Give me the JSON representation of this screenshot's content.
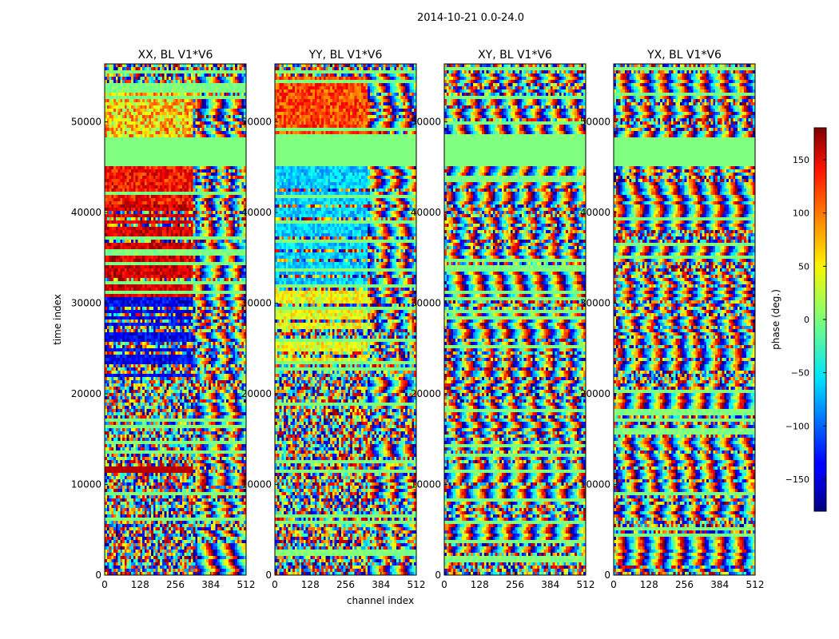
{
  "figure": {
    "suptitle": "2014-10-21 0.0-24.0"
  },
  "chart_data": {
    "type": "heatmap",
    "panels": [
      {
        "title": "XX, BL V1*V6",
        "pol": "XX"
      },
      {
        "title": "YY, BL V1*V6",
        "pol": "YY"
      },
      {
        "title": "XY, BL V1*V6",
        "pol": "XY"
      },
      {
        "title": "YX, BL V1*V6",
        "pol": "YX"
      }
    ],
    "xlabel": "channel index",
    "ylabel": "time index",
    "xlim": [
      0,
      512
    ],
    "ylim": [
      0,
      56400
    ],
    "xticks": [
      0,
      128,
      256,
      384,
      512
    ],
    "yticks": [
      0,
      10000,
      20000,
      30000,
      40000,
      50000
    ],
    "colorbar": {
      "label": "phase (deg.)",
      "range": [
        -180,
        180
      ],
      "ticks": [
        150,
        100,
        50,
        0,
        -50,
        -100,
        -150
      ],
      "tick_labels": [
        "150",
        "100",
        "50",
        "0",
        "−50",
        "−100",
        "−150"
      ],
      "colormap": "jet"
    },
    "flagged_time_range": [
      45300,
      48600
    ],
    "flagged_value": 0,
    "grid": false,
    "legend": "none"
  }
}
